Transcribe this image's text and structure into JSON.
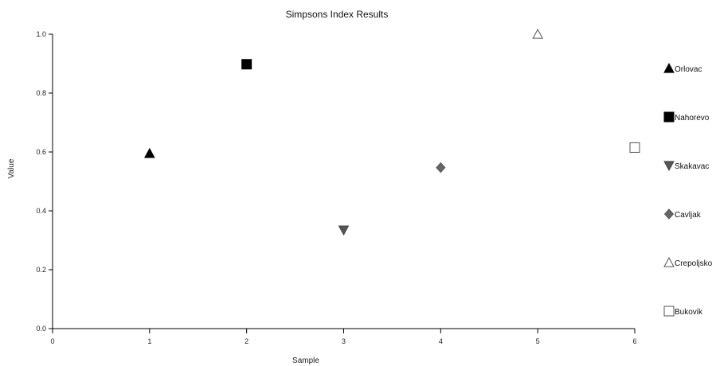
{
  "chart_data": {
    "type": "scatter",
    "title": "Simpsons Index Results",
    "xlabel": "Sample",
    "ylabel": "Value",
    "xlim": [
      0,
      6
    ],
    "ylim": [
      0.0,
      1.0
    ],
    "xticks": [
      "0",
      "1",
      "2",
      "3",
      "4",
      "5",
      "6"
    ],
    "yticks": [
      "0.0",
      "0.2",
      "0.4",
      "0.6",
      "0.8",
      "1.0"
    ],
    "grid": false,
    "legend_position": "right",
    "series": [
      {
        "name": "Orlovac",
        "x": 1,
        "y": 0.595,
        "marker": "triangle-up",
        "fill": "#000000",
        "stroke": "#000000"
      },
      {
        "name": "Nahorevo",
        "x": 2,
        "y": 0.898,
        "marker": "square",
        "fill": "#000000",
        "stroke": "#000000"
      },
      {
        "name": "Skakavac",
        "x": 3,
        "y": 0.335,
        "marker": "triangle-down",
        "fill": "#555555",
        "stroke": "#444444"
      },
      {
        "name": "Cavljak",
        "x": 4,
        "y": 0.547,
        "marker": "diamond",
        "fill": "#666666",
        "stroke": "#555555"
      },
      {
        "name": "Crepoljsko",
        "x": 5,
        "y": 1.0,
        "marker": "triangle-up",
        "fill": "#ffffff",
        "stroke": "#555555"
      },
      {
        "name": "Bukovik",
        "x": 6,
        "y": 0.615,
        "marker": "square",
        "fill": "#ffffff",
        "stroke": "#555555"
      }
    ]
  }
}
